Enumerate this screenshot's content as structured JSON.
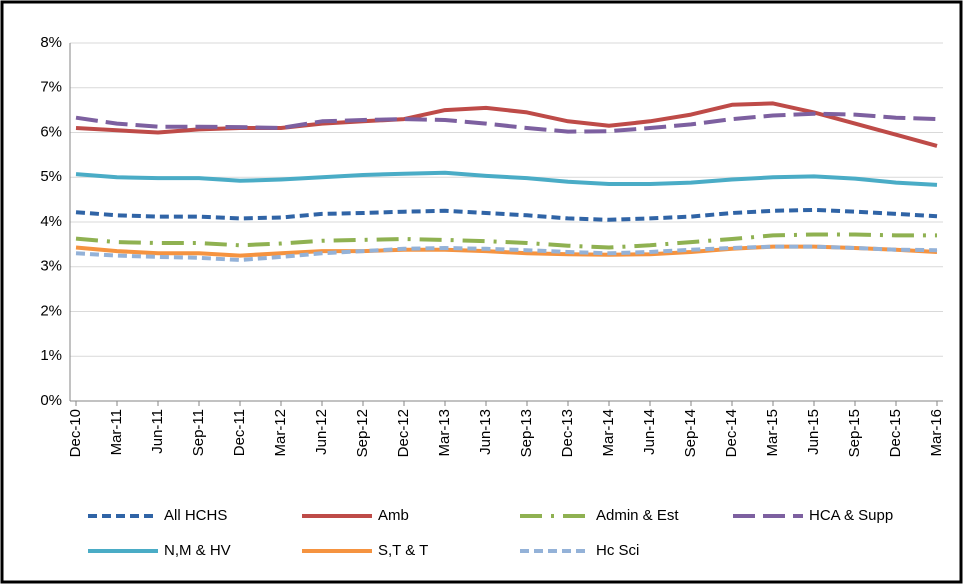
{
  "chart_data": {
    "type": "line",
    "categories": [
      "Dec-10",
      "Mar-11",
      "Jun-11",
      "Sep-11",
      "Dec-11",
      "Mar-12",
      "Jun-12",
      "Sep-12",
      "Dec-12",
      "Mar-13",
      "Jun-13",
      "Sep-13",
      "Dec-13",
      "Mar-14",
      "Jun-14",
      "Sep-14",
      "Dec-14",
      "Mar-15",
      "Jun-15",
      "Sep-15",
      "Dec-15",
      "Mar-16"
    ],
    "ylim": [
      0,
      8
    ],
    "yticks": [
      {
        "value": 0,
        "label": "0%"
      },
      {
        "value": 1,
        "label": "1%"
      },
      {
        "value": 2,
        "label": "2%"
      },
      {
        "value": 3,
        "label": "3%"
      },
      {
        "value": 4,
        "label": "4%"
      },
      {
        "value": 5,
        "label": "5%"
      },
      {
        "value": 6,
        "label": "6%"
      },
      {
        "value": 7,
        "label": "7%"
      },
      {
        "value": 8,
        "label": "8%"
      }
    ],
    "grid": true,
    "series": [
      {
        "name": "All HCHS",
        "color": "#3064a6",
        "line_style": "dash",
        "values": [
          4.22,
          4.15,
          4.12,
          4.12,
          4.08,
          4.1,
          4.18,
          4.2,
          4.23,
          4.25,
          4.2,
          4.15,
          4.08,
          4.05,
          4.08,
          4.12,
          4.2,
          4.25,
          4.27,
          4.23,
          4.18,
          4.13
        ]
      },
      {
        "name": "Amb",
        "color": "#be4b48",
        "line_style": "solid",
        "values": [
          6.1,
          6.05,
          6.0,
          6.07,
          6.1,
          6.1,
          6.2,
          6.25,
          6.3,
          6.5,
          6.55,
          6.45,
          6.25,
          6.15,
          6.25,
          6.4,
          6.62,
          6.65,
          6.45,
          6.2,
          5.95,
          5.7
        ]
      },
      {
        "name": "Admin & Est",
        "color": "#8fb151",
        "line_style": "long-dash-dot",
        "values": [
          3.63,
          3.55,
          3.53,
          3.53,
          3.48,
          3.52,
          3.58,
          3.6,
          3.62,
          3.6,
          3.57,
          3.53,
          3.47,
          3.43,
          3.48,
          3.55,
          3.62,
          3.7,
          3.72,
          3.72,
          3.7,
          3.7
        ]
      },
      {
        "name": "HCA & Supp",
        "color": "#7d60a0",
        "line_style": "long-dash",
        "values": [
          6.33,
          6.2,
          6.13,
          6.13,
          6.12,
          6.1,
          6.25,
          6.28,
          6.3,
          6.28,
          6.2,
          6.1,
          6.02,
          6.03,
          6.1,
          6.18,
          6.3,
          6.38,
          6.42,
          6.4,
          6.33,
          6.3
        ]
      },
      {
        "name": "N,M & HV",
        "color": "#4aacc6",
        "line_style": "solid",
        "values": [
          5.07,
          5.0,
          4.98,
          4.98,
          4.92,
          4.95,
          5.0,
          5.05,
          5.08,
          5.1,
          5.03,
          4.98,
          4.9,
          4.85,
          4.85,
          4.88,
          4.95,
          5.0,
          5.02,
          4.97,
          4.88,
          4.83
        ]
      },
      {
        "name": "S,T & T",
        "color": "#f59340",
        "line_style": "solid",
        "values": [
          3.43,
          3.35,
          3.3,
          3.3,
          3.25,
          3.3,
          3.35,
          3.35,
          3.38,
          3.38,
          3.35,
          3.3,
          3.28,
          3.27,
          3.28,
          3.33,
          3.4,
          3.45,
          3.45,
          3.42,
          3.38,
          3.33
        ]
      },
      {
        "name": "Hc Sci",
        "color": "#94b2d8",
        "line_style": "dash",
        "values": [
          3.3,
          3.25,
          3.22,
          3.2,
          3.15,
          3.22,
          3.3,
          3.35,
          3.4,
          3.42,
          3.4,
          3.37,
          3.33,
          3.3,
          3.33,
          3.38,
          3.42,
          3.45,
          3.45,
          3.42,
          3.38,
          3.37
        ]
      }
    ]
  }
}
